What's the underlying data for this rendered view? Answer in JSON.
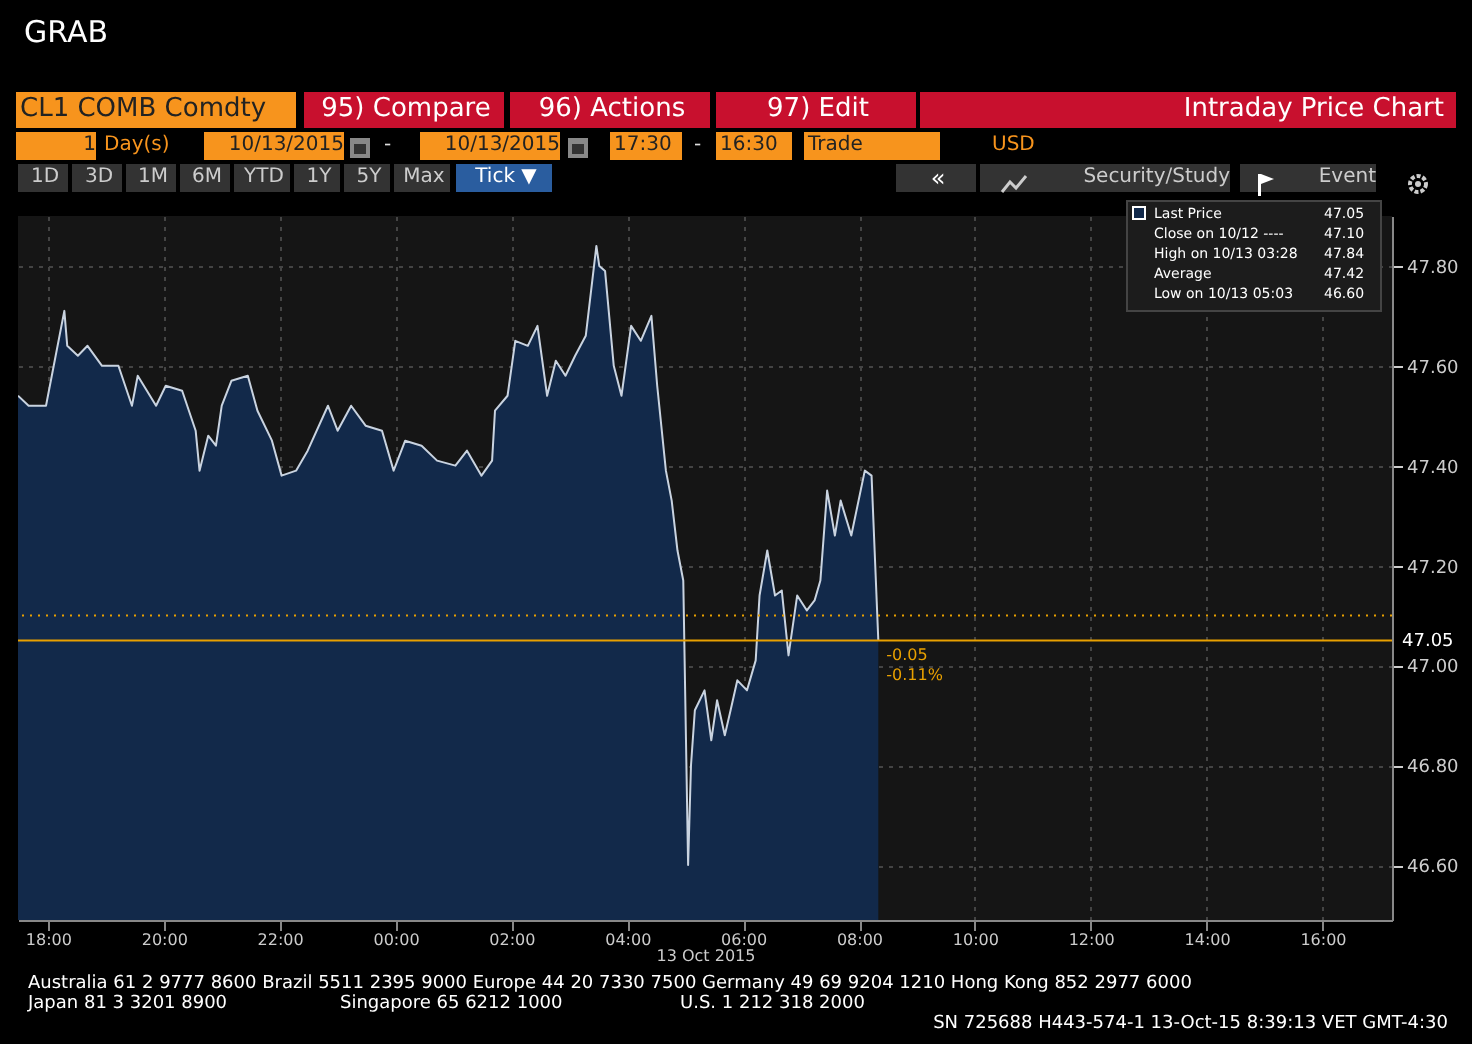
{
  "chart_data": {
    "type": "area",
    "title": "Intraday Price Chart",
    "subtitle": "CL1 COMB Comdty",
    "xlabel": "13 Oct 2015",
    "series": [
      {
        "name": "Last Price",
        "color": "#12294a",
        "x": [
          "2015-10-12T17:29",
          "2015-10-12T17:40",
          "2015-10-12T17:58",
          "2015-10-12T18:08",
          "2015-10-12T18:17",
          "2015-10-12T18:20",
          "2015-10-12T18:31",
          "2015-10-12T18:41",
          "2015-10-12T18:56",
          "2015-10-12T19:13",
          "2015-10-12T19:27",
          "2015-10-12T19:33",
          "2015-10-12T19:52",
          "2015-10-12T20:02",
          "2015-10-12T20:19",
          "2015-10-12T20:33",
          "2015-10-12T20:37",
          "2015-10-12T20:46",
          "2015-10-12T20:54",
          "2015-10-12T21:00",
          "2015-10-12T21:10",
          "2015-10-12T21:27",
          "2015-10-12T21:37",
          "2015-10-12T21:52",
          "2015-10-12T22:02",
          "2015-10-12T22:17",
          "2015-10-12T22:29",
          "2015-10-12T22:50",
          "2015-10-12T23:00",
          "2015-10-12T23:14",
          "2015-10-12T23:29",
          "2015-10-12T23:46",
          "2015-10-12T23:58",
          "2015-10-13T00:10",
          "2015-10-13T00:27",
          "2015-10-13T00:43",
          "2015-10-13T01:02",
          "2015-10-13T01:14",
          "2015-10-13T01:29",
          "2015-10-13T01:40",
          "2015-10-13T01:43",
          "2015-10-13T01:56",
          "2015-10-13T02:04",
          "2015-10-13T02:17",
          "2015-10-13T02:27",
          "2015-10-13T02:37",
          "2015-10-13T02:46",
          "2015-10-13T02:56",
          "2015-10-13T03:06",
          "2015-10-13T03:17",
          "2015-10-13T03:28",
          "2015-10-13T03:31",
          "2015-10-13T03:37",
          "2015-10-13T03:46",
          "2015-10-13T03:54",
          "2015-10-13T04:04",
          "2015-10-13T04:14",
          "2015-10-13T04:25",
          "2015-10-13T04:31",
          "2015-10-13T04:40",
          "2015-10-13T04:46",
          "2015-10-13T04:52",
          "2015-10-13T04:58",
          "2015-10-13T05:03",
          "2015-10-13T05:06",
          "2015-10-13T05:10",
          "2015-10-13T05:20",
          "2015-10-13T05:27",
          "2015-10-13T05:33",
          "2015-10-13T05:41",
          "2015-10-13T05:47",
          "2015-10-13T05:54",
          "2015-10-13T06:04",
          "2015-10-13T06:13",
          "2015-10-13T06:17",
          "2015-10-13T06:25",
          "2015-10-13T06:33",
          "2015-10-13T06:40",
          "2015-10-13T06:47",
          "2015-10-13T06:56",
          "2015-10-13T07:06",
          "2015-10-13T07:14",
          "2015-10-13T07:20",
          "2015-10-13T07:27",
          "2015-10-13T07:35",
          "2015-10-13T07:41",
          "2015-10-13T07:52",
          "2015-10-13T08:06",
          "2015-10-13T08:13",
          "2015-10-13T08:20"
        ],
        "values": [
          47.54,
          47.52,
          47.52,
          47.62,
          47.71,
          47.64,
          47.62,
          47.64,
          47.6,
          47.6,
          47.52,
          47.58,
          47.52,
          47.56,
          47.55,
          47.47,
          47.39,
          47.46,
          47.44,
          47.52,
          47.57,
          47.58,
          47.51,
          47.45,
          47.38,
          47.39,
          47.43,
          47.52,
          47.47,
          47.52,
          47.48,
          47.47,
          47.39,
          47.45,
          47.44,
          47.41,
          47.4,
          47.43,
          47.38,
          47.41,
          47.51,
          47.54,
          47.65,
          47.64,
          47.68,
          47.54,
          47.61,
          47.58,
          47.62,
          47.66,
          47.84,
          47.8,
          47.79,
          47.6,
          47.54,
          47.68,
          47.65,
          47.7,
          47.56,
          47.39,
          47.33,
          47.23,
          47.17,
          46.6,
          46.8,
          46.91,
          46.95,
          46.85,
          46.93,
          46.86,
          46.91,
          46.97,
          46.95,
          47.01,
          47.14,
          47.23,
          47.14,
          47.15,
          47.02,
          47.14,
          47.11,
          47.13,
          47.17,
          47.35,
          47.26,
          47.33,
          47.26,
          47.39,
          47.38,
          47.05
        ]
      }
    ],
    "xlim": [
      "2015-10-12T17:29",
      "2015-10-13T17:12"
    ],
    "xticks": [
      {
        "value": "2015-10-12T18:00",
        "label": "18:00"
      },
      {
        "value": "2015-10-12T20:00",
        "label": "20:00"
      },
      {
        "value": "2015-10-12T22:00",
        "label": "22:00"
      },
      {
        "value": "2015-10-13T00:00",
        "label": "00:00"
      },
      {
        "value": "2015-10-13T02:00",
        "label": "02:00"
      },
      {
        "value": "2015-10-13T04:00",
        "label": "04:00"
      },
      {
        "value": "2015-10-13T06:00",
        "label": "06:00"
      },
      {
        "value": "2015-10-13T08:00",
        "label": "08:00"
      },
      {
        "value": "2015-10-13T10:00",
        "label": "10:00"
      },
      {
        "value": "2015-10-13T12:00",
        "label": "12:00"
      },
      {
        "value": "2015-10-13T14:00",
        "label": "14:00"
      },
      {
        "value": "2015-10-13T16:00",
        "label": "16:00"
      }
    ],
    "ylim": [
      46.49,
      47.9
    ],
    "yticks": [
      {
        "value": 46.6,
        "label": "46.60"
      },
      {
        "value": 46.8,
        "label": "46.80"
      },
      {
        "value": 47.0,
        "label": "47.00"
      },
      {
        "value": 47.2,
        "label": "47.20"
      },
      {
        "value": 47.4,
        "label": "47.40"
      },
      {
        "value": 47.6,
        "label": "47.60"
      },
      {
        "value": 47.8,
        "label": "47.80"
      }
    ],
    "grid": true,
    "legend": "top right",
    "ref_lines": [
      {
        "axis": "y",
        "value": 47.1,
        "color": "#e8a000",
        "line_style": "dotted"
      },
      {
        "axis": "y",
        "value": 47.05,
        "label": "47.05",
        "color": "#e8a000",
        "line_style": "solid"
      }
    ],
    "annotations": [
      "GRAB",
      "95) Compare",
      "96) Actions",
      "97) Edit",
      "1",
      "Day(s)",
      "10/13/2015",
      "-",
      "10/13/2015",
      "17:30",
      "-",
      "16:30",
      "Trade",
      "USD",
      "1D",
      "3D",
      "1M",
      "6M",
      "YTD",
      "1Y",
      "5Y",
      "Max",
      "Tick ▼",
      "«",
      "Security/Study",
      "Event",
      "47.05",
      "Close on 10/12 ----",
      "47.10",
      "High on 10/13 03:28",
      "47.84",
      "Average",
      "47.42",
      "Low on 10/13 05:03",
      "46.60",
      "Australia 61 2 9777 8600 Brazil 5511 2395 9000 Europe 44 20 7330 7500 Germany 49 69 9204 1210 Hong Kong 852 2977 6000",
      "Japan 81 3 3201 8900",
      "Singapore 65 6212 1000",
      "U.S. 1 212 318 2000",
      "SN 725688 H443-574-1 13-Oct-15 8:39:13 VET GMT-4:30",
      {
        "text": "-0.05",
        "x": "2015-10-13T08:20",
        "y": 47.05
      },
      {
        "text": "-0.11%",
        "x": "2015-10-13T08:20",
        "y": 47.05
      }
    ]
  }
}
